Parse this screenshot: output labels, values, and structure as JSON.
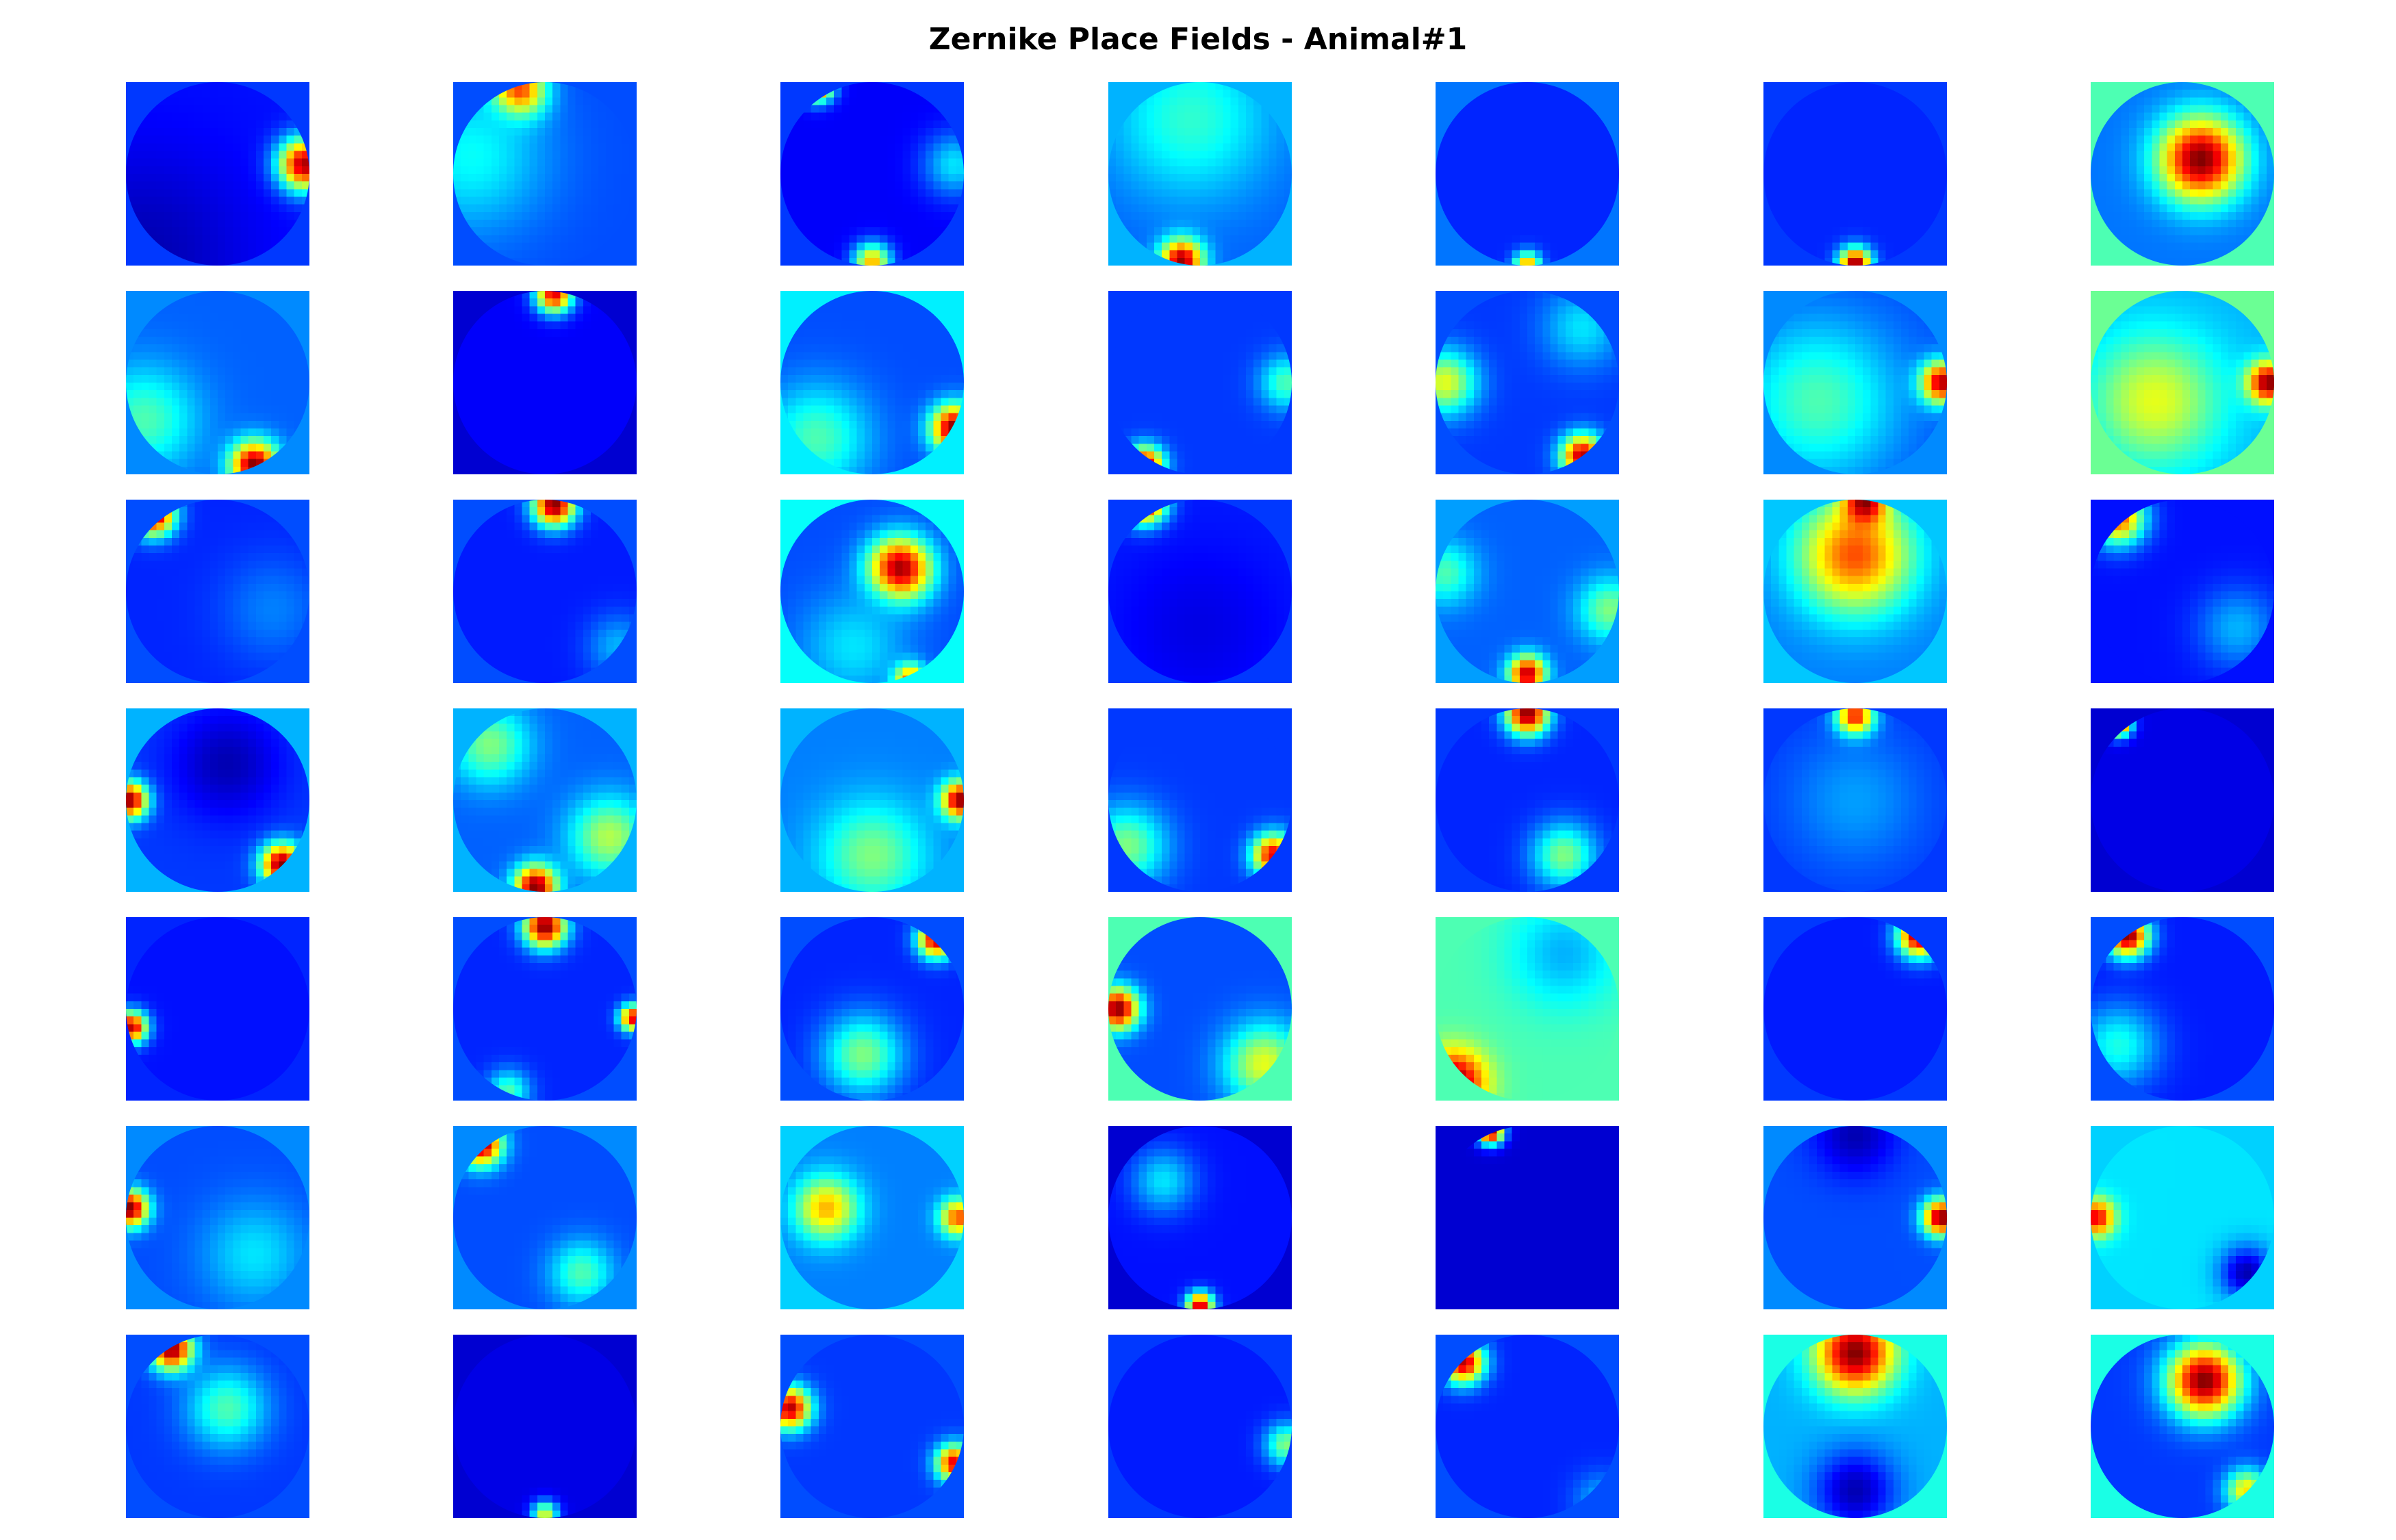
{
  "title": "Zernike Place Fields - Animal#1",
  "chart_data": {
    "type": "heatmap",
    "title": "Zernike Place Fields - Animal#1",
    "grid": {
      "rows": 7,
      "cols": 7
    },
    "colormap": [
      "#00007f",
      "#0000ff",
      "#007fff",
      "#00ffff",
      "#7fff7f",
      "#ffff00",
      "#ff7f00",
      "#ff0000",
      "#7f0000"
    ],
    "axes": "off",
    "panels": [
      {
        "bg": 0.18,
        "base": 0.14,
        "blobs": [
          {
            "x": 0.47,
            "y": -0.05,
            "v": 1.0,
            "s": 0.1
          },
          {
            "x": -0.4,
            "y": 0.45,
            "v": 0.05,
            "s": 0.4
          }
        ]
      },
      {
        "bg": 0.2,
        "base": 0.2,
        "blobs": [
          {
            "x": -0.15,
            "y": -0.45,
            "v": 1.0,
            "s": 0.1
          },
          {
            "x": -0.4,
            "y": -0.1,
            "v": 0.38,
            "s": 0.28
          }
        ]
      },
      {
        "bg": 0.18,
        "base": 0.12,
        "blobs": [
          {
            "x": -0.3,
            "y": -0.48,
            "v": 0.95,
            "s": 0.06
          },
          {
            "x": 0.0,
            "y": 0.48,
            "v": 0.7,
            "s": 0.07
          },
          {
            "x": 0.45,
            "y": -0.05,
            "v": 0.35,
            "s": 0.12
          }
        ]
      },
      {
        "bg": 0.3,
        "base": 0.22,
        "blobs": [
          {
            "x": -0.1,
            "y": 0.47,
            "v": 1.0,
            "s": 0.08
          },
          {
            "x": -0.05,
            "y": -0.3,
            "v": 0.42,
            "s": 0.3
          }
        ]
      },
      {
        "bg": 0.24,
        "base": 0.16,
        "blobs": [
          {
            "x": 0.0,
            "y": 0.5,
            "v": 0.75,
            "s": 0.05
          }
        ]
      },
      {
        "bg": 0.18,
        "base": 0.16,
        "blobs": [
          {
            "x": 0.0,
            "y": 0.49,
            "v": 1.0,
            "s": 0.06
          }
        ]
      },
      {
        "bg": 0.45,
        "base": 0.24,
        "blobs": [
          {
            "x": 0.1,
            "y": -0.08,
            "v": 1.0,
            "s": 0.16
          }
        ]
      },
      {
        "bg": 0.26,
        "base": 0.22,
        "blobs": [
          {
            "x": 0.2,
            "y": 0.45,
            "v": 1.0,
            "s": 0.09
          },
          {
            "x": -0.4,
            "y": 0.2,
            "v": 0.45,
            "s": 0.2
          }
        ]
      },
      {
        "bg": 0.08,
        "base": 0.12,
        "blobs": [
          {
            "x": 0.05,
            "y": -0.48,
            "v": 0.9,
            "s": 0.07
          }
        ]
      },
      {
        "bg": 0.36,
        "base": 0.2,
        "blobs": [
          {
            "x": 0.45,
            "y": 0.25,
            "v": 1.0,
            "s": 0.09
          },
          {
            "x": -0.3,
            "y": 0.3,
            "v": 0.45,
            "s": 0.2
          }
        ]
      },
      {
        "bg": 0.18,
        "base": 0.18,
        "blobs": [
          {
            "x": -0.3,
            "y": 0.45,
            "v": 0.95,
            "s": 0.07
          },
          {
            "x": 0.47,
            "y": 0.0,
            "v": 0.45,
            "s": 0.1
          }
        ]
      },
      {
        "bg": 0.2,
        "base": 0.18,
        "blobs": [
          {
            "x": -0.45,
            "y": 0.0,
            "v": 0.6,
            "s": 0.12
          },
          {
            "x": 0.3,
            "y": 0.4,
            "v": 0.95,
            "s": 0.08
          },
          {
            "x": 0.3,
            "y": -0.3,
            "v": 0.35,
            "s": 0.15
          }
        ]
      },
      {
        "bg": 0.26,
        "base": 0.2,
        "blobs": [
          {
            "x": 0.47,
            "y": 0.0,
            "v": 1.0,
            "s": 0.08
          },
          {
            "x": -0.2,
            "y": 0.1,
            "v": 0.45,
            "s": 0.3
          }
        ]
      },
      {
        "bg": 0.48,
        "base": 0.3,
        "blobs": [
          {
            "x": -0.15,
            "y": 0.1,
            "v": 0.6,
            "s": 0.25
          },
          {
            "x": 0.47,
            "y": 0.0,
            "v": 1.0,
            "s": 0.08
          }
        ]
      },
      {
        "bg": 0.2,
        "base": 0.16,
        "blobs": [
          {
            "x": -0.35,
            "y": -0.42,
            "v": 1.0,
            "s": 0.08
          },
          {
            "x": 0.3,
            "y": 0.1,
            "v": 0.25,
            "s": 0.2
          }
        ]
      },
      {
        "bg": 0.2,
        "base": 0.15,
        "blobs": [
          {
            "x": 0.05,
            "y": -0.47,
            "v": 1.0,
            "s": 0.08
          },
          {
            "x": 0.4,
            "y": 0.3,
            "v": 0.3,
            "s": 0.12
          }
        ]
      },
      {
        "bg": 0.38,
        "base": 0.2,
        "blobs": [
          {
            "x": 0.15,
            "y": -0.12,
            "v": 1.0,
            "s": 0.12
          },
          {
            "x": 0.2,
            "y": 0.48,
            "v": 0.9,
            "s": 0.06
          },
          {
            "x": -0.1,
            "y": 0.3,
            "v": 0.35,
            "s": 0.2
          }
        ]
      },
      {
        "bg": 0.18,
        "base": 0.15,
        "blobs": [
          {
            "x": -0.3,
            "y": -0.48,
            "v": 1.0,
            "s": 0.08
          },
          {
            "x": 0.0,
            "y": 0.2,
            "v": 0.1,
            "s": 0.3
          }
        ]
      },
      {
        "bg": 0.28,
        "base": 0.22,
        "blobs": [
          {
            "x": -0.45,
            "y": -0.1,
            "v": 0.45,
            "s": 0.12
          },
          {
            "x": 0.45,
            "y": 0.1,
            "v": 0.5,
            "s": 0.12
          },
          {
            "x": 0.0,
            "y": 0.45,
            "v": 0.95,
            "s": 0.07
          }
        ]
      },
      {
        "bg": 0.32,
        "base": 0.25,
        "blobs": [
          {
            "x": 0.0,
            "y": -0.2,
            "v": 0.8,
            "s": 0.22
          },
          {
            "x": 0.05,
            "y": -0.48,
            "v": 1.0,
            "s": 0.08
          }
        ]
      },
      {
        "bg": 0.14,
        "base": 0.14,
        "blobs": [
          {
            "x": -0.35,
            "y": -0.4,
            "v": 0.8,
            "s": 0.1
          },
          {
            "x": 0.3,
            "y": 0.2,
            "v": 0.3,
            "s": 0.15
          }
        ]
      },
      {
        "bg": 0.3,
        "base": 0.18,
        "blobs": [
          {
            "x": -0.48,
            "y": 0.0,
            "v": 1.0,
            "s": 0.07
          },
          {
            "x": 0.35,
            "y": 0.35,
            "v": 1.0,
            "s": 0.08
          },
          {
            "x": 0.05,
            "y": -0.2,
            "v": 0.05,
            "s": 0.2
          }
        ]
      },
      {
        "bg": 0.3,
        "base": 0.22,
        "blobs": [
          {
            "x": -0.05,
            "y": 0.47,
            "v": 1.0,
            "s": 0.08
          },
          {
            "x": 0.35,
            "y": 0.2,
            "v": 0.55,
            "s": 0.15
          },
          {
            "x": -0.3,
            "y": -0.3,
            "v": 0.5,
            "s": 0.15
          }
        ]
      },
      {
        "bg": 0.3,
        "base": 0.25,
        "blobs": [
          {
            "x": 0.48,
            "y": 0.0,
            "v": 1.0,
            "s": 0.07
          },
          {
            "x": 0.0,
            "y": 0.3,
            "v": 0.5,
            "s": 0.2
          }
        ]
      },
      {
        "bg": 0.18,
        "base": 0.18,
        "blobs": [
          {
            "x": -0.4,
            "y": 0.25,
            "v": 0.5,
            "s": 0.15
          },
          {
            "x": 0.4,
            "y": 0.3,
            "v": 0.9,
            "s": 0.08
          }
        ]
      },
      {
        "bg": 0.18,
        "base": 0.16,
        "blobs": [
          {
            "x": 0.0,
            "y": -0.47,
            "v": 1.0,
            "s": 0.08
          },
          {
            "x": 0.2,
            "y": 0.3,
            "v": 0.5,
            "s": 0.12
          }
        ]
      },
      {
        "bg": 0.18,
        "base": 0.18,
        "blobs": [
          {
            "x": 0.0,
            "y": -0.45,
            "v": 1.0,
            "s": 0.07
          },
          {
            "x": 0.0,
            "y": 0.0,
            "v": 0.28,
            "s": 0.25
          }
        ]
      },
      {
        "bg": 0.08,
        "base": 0.1,
        "blobs": [
          {
            "x": -0.35,
            "y": -0.42,
            "v": 0.95,
            "s": 0.05
          }
        ]
      },
      {
        "bg": 0.16,
        "base": 0.14,
        "blobs": [
          {
            "x": -0.47,
            "y": 0.1,
            "v": 0.95,
            "s": 0.06
          }
        ]
      },
      {
        "bg": 0.2,
        "base": 0.16,
        "blobs": [
          {
            "x": 0.0,
            "y": -0.45,
            "v": 1.0,
            "s": 0.08
          },
          {
            "x": 0.48,
            "y": 0.05,
            "v": 0.9,
            "s": 0.05
          },
          {
            "x": -0.2,
            "y": 0.45,
            "v": 0.45,
            "s": 0.08
          }
        ]
      },
      {
        "bg": 0.2,
        "base": 0.16,
        "blobs": [
          {
            "x": 0.35,
            "y": -0.38,
            "v": 0.95,
            "s": 0.07
          },
          {
            "x": -0.05,
            "y": 0.25,
            "v": 0.5,
            "s": 0.15
          }
        ]
      },
      {
        "bg": 0.45,
        "base": 0.2,
        "blobs": [
          {
            "x": -0.45,
            "y": 0.0,
            "v": 1.0,
            "s": 0.08
          },
          {
            "x": 0.35,
            "y": 0.3,
            "v": 0.6,
            "s": 0.15
          }
        ]
      },
      {
        "bg": 0.45,
        "base": 0.45,
        "blobs": [
          {
            "x": -0.4,
            "y": 0.4,
            "v": 1.0,
            "s": 0.12
          },
          {
            "x": 0.2,
            "y": -0.3,
            "v": 0.3,
            "s": 0.2
          }
        ]
      },
      {
        "bg": 0.18,
        "base": 0.15,
        "blobs": [
          {
            "x": 0.35,
            "y": -0.4,
            "v": 1.0,
            "s": 0.08
          }
        ]
      },
      {
        "bg": 0.2,
        "base": 0.15,
        "blobs": [
          {
            "x": -0.3,
            "y": -0.4,
            "v": 1.0,
            "s": 0.08
          },
          {
            "x": -0.35,
            "y": 0.2,
            "v": 0.4,
            "s": 0.15
          }
        ]
      },
      {
        "bg": 0.26,
        "base": 0.2,
        "blobs": [
          {
            "x": -0.48,
            "y": -0.05,
            "v": 1.0,
            "s": 0.07
          },
          {
            "x": 0.2,
            "y": 0.2,
            "v": 0.35,
            "s": 0.2
          }
        ]
      },
      {
        "bg": 0.26,
        "base": 0.2,
        "blobs": [
          {
            "x": -0.35,
            "y": -0.4,
            "v": 1.0,
            "s": 0.08
          },
          {
            "x": 0.2,
            "y": 0.3,
            "v": 0.45,
            "s": 0.12
          }
        ]
      },
      {
        "bg": 0.33,
        "base": 0.25,
        "blobs": [
          {
            "x": -0.25,
            "y": -0.05,
            "v": 0.7,
            "s": 0.12
          },
          {
            "x": 0.47,
            "y": 0.0,
            "v": 0.8,
            "s": 0.07
          }
        ]
      },
      {
        "bg": 0.08,
        "base": 0.14,
        "blobs": [
          {
            "x": -0.2,
            "y": -0.2,
            "v": 0.35,
            "s": 0.12
          },
          {
            "x": 0.0,
            "y": 0.48,
            "v": 0.95,
            "s": 0.05
          }
        ]
      },
      {
        "bg": 0.08,
        "base": 0.08,
        "blobs": [
          {
            "x": -0.2,
            "y": -0.47,
            "v": 1.0,
            "s": 0.05
          }
        ]
      },
      {
        "bg": 0.26,
        "base": 0.2,
        "blobs": [
          {
            "x": 0.47,
            "y": 0.0,
            "v": 1.0,
            "s": 0.07
          },
          {
            "x": 0.0,
            "y": -0.45,
            "v": 0.05,
            "s": 0.15
          }
        ]
      },
      {
        "bg": 0.33,
        "base": 0.35,
        "blobs": [
          {
            "x": -0.47,
            "y": 0.0,
            "v": 0.9,
            "s": 0.07
          },
          {
            "x": 0.35,
            "y": 0.3,
            "v": 0.05,
            "s": 0.1
          }
        ]
      },
      {
        "bg": 0.2,
        "base": 0.18,
        "blobs": [
          {
            "x": -0.25,
            "y": -0.42,
            "v": 1.0,
            "s": 0.08
          },
          {
            "x": 0.05,
            "y": -0.1,
            "v": 0.45,
            "s": 0.15
          }
        ]
      },
      {
        "bg": 0.08,
        "base": 0.1,
        "blobs": [
          {
            "x": 0.0,
            "y": 0.48,
            "v": 0.6,
            "s": 0.05
          }
        ]
      },
      {
        "bg": 0.2,
        "base": 0.18,
        "blobs": [
          {
            "x": -0.45,
            "y": -0.1,
            "v": 0.95,
            "s": 0.08
          },
          {
            "x": 0.45,
            "y": 0.2,
            "v": 0.9,
            "s": 0.07
          }
        ]
      },
      {
        "bg": 0.18,
        "base": 0.15,
        "blobs": [
          {
            "x": 0.47,
            "y": 0.1,
            "v": 0.5,
            "s": 0.08
          }
        ]
      },
      {
        "bg": 0.2,
        "base": 0.16,
        "blobs": [
          {
            "x": -0.35,
            "y": -0.35,
            "v": 0.95,
            "s": 0.08
          },
          {
            "x": 0.4,
            "y": 0.4,
            "v": 0.3,
            "s": 0.1
          }
        ]
      },
      {
        "bg": 0.4,
        "base": 0.3,
        "blobs": [
          {
            "x": 0.0,
            "y": -0.4,
            "v": 1.0,
            "s": 0.15
          },
          {
            "x": 0.0,
            "y": 0.35,
            "v": 0.05,
            "s": 0.15
          }
        ]
      },
      {
        "bg": 0.4,
        "base": 0.18,
        "blobs": [
          {
            "x": 0.12,
            "y": -0.25,
            "v": 1.0,
            "s": 0.14
          },
          {
            "x": 0.35,
            "y": 0.35,
            "v": 0.65,
            "s": 0.08
          }
        ]
      }
    ]
  }
}
